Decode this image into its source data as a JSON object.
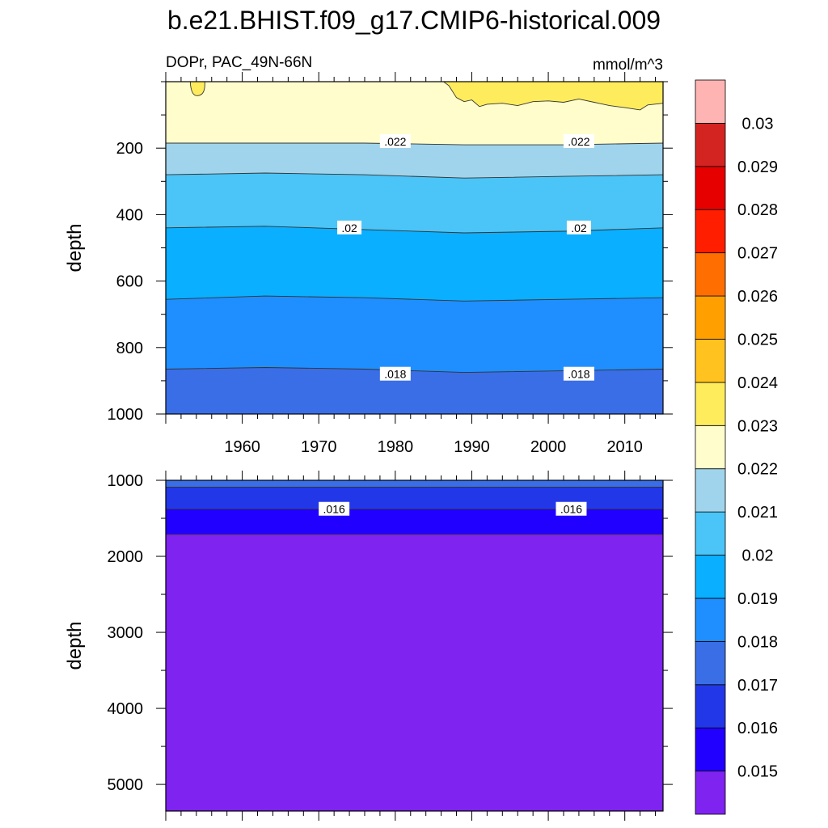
{
  "title": "b.e21.BHIST.f09_g17.CMIP6-historical.009",
  "chart_data": [
    {
      "type": "heatmap",
      "subtitle_left": "DOPr, PAC_49N-66N",
      "subtitle_right": "mmol/m^3",
      "xlabel": "",
      "ylabel": "depth",
      "xlim": [
        1950,
        2015
      ],
      "ylim": [
        0,
        1000
      ],
      "y_reversed": true,
      "x_ticks": [
        1960,
        1970,
        1980,
        1990,
        2000,
        2010
      ],
      "y_ticks": [
        200,
        400,
        600,
        800,
        1000
      ],
      "x_ticks_labeled": true,
      "contours": [
        {
          "level": 0.023,
          "depth": [
            10,
            10
          ],
          "note": "near-surface patches 1953-1955 and 1986-2015"
        },
        {
          "level": 0.022,
          "depth": [
            185,
            185,
            185,
            190,
            190,
            185
          ]
        },
        {
          "level": 0.021,
          "depth": [
            280,
            275,
            280,
            290,
            285,
            280
          ]
        },
        {
          "level": 0.02,
          "depth": [
            440,
            435,
            445,
            455,
            450,
            440
          ]
        },
        {
          "level": 0.019,
          "depth": [
            655,
            645,
            650,
            660,
            655,
            650
          ]
        },
        {
          "level": 0.018,
          "depth": [
            865,
            860,
            865,
            875,
            870,
            865
          ]
        }
      ],
      "contour_x": [
        1950,
        1963,
        1976,
        1989,
        2002,
        2015
      ],
      "contour_labels": [
        {
          "text": ".022",
          "x": 1980,
          "depth": 180
        },
        {
          "text": ".022",
          "x": 2004,
          "depth": 180
        },
        {
          "text": ".02",
          "x": 1974,
          "depth": 440
        },
        {
          "text": ".02",
          "x": 2004,
          "depth": 440
        },
        {
          "text": ".018",
          "x": 1980,
          "depth": 880
        },
        {
          "text": ".018",
          "x": 2004,
          "depth": 880
        }
      ]
    },
    {
      "type": "heatmap",
      "xlabel": "",
      "ylabel": "depth",
      "xlim": [
        1950,
        2015
      ],
      "ylim": [
        1000,
        5350
      ],
      "y_reversed": true,
      "x_ticks": [
        1960,
        1970,
        1980,
        1990,
        2000,
        2010
      ],
      "y_ticks": [
        1000,
        2000,
        3000,
        4000,
        5000
      ],
      "x_ticks_labeled": false,
      "contours": [
        {
          "level": 0.017,
          "depth": [
            1090,
            1090
          ]
        },
        {
          "level": 0.016,
          "depth": [
            1380,
            1380
          ]
        },
        {
          "level": 0.015,
          "depth": [
            1710,
            1710
          ]
        }
      ],
      "contour_labels": [
        {
          "text": ".016",
          "x": 1972,
          "depth": 1380
        },
        {
          "text": ".016",
          "x": 2003,
          "depth": 1380
        }
      ]
    }
  ],
  "colorbar": {
    "levels": [
      "0.015",
      "0.016",
      "0.017",
      "0.018",
      "0.019",
      "0.02",
      "0.021",
      "0.022",
      "0.023",
      "0.024",
      "0.025",
      "0.026",
      "0.027",
      "0.028",
      "0.029",
      "0.03"
    ],
    "colors": [
      "#7f23f0",
      "#2200ff",
      "#2238e8",
      "#3a6ee6",
      "#1f8fff",
      "#0aafff",
      "#4bc4f7",
      "#9fd4ec",
      "#fffdcc",
      "#ffec5c",
      "#ffc21e",
      "#ff9f00",
      "#ff6e00",
      "#ff1e00",
      "#e60000",
      "#d42422",
      "#ffb4b4"
    ]
  }
}
